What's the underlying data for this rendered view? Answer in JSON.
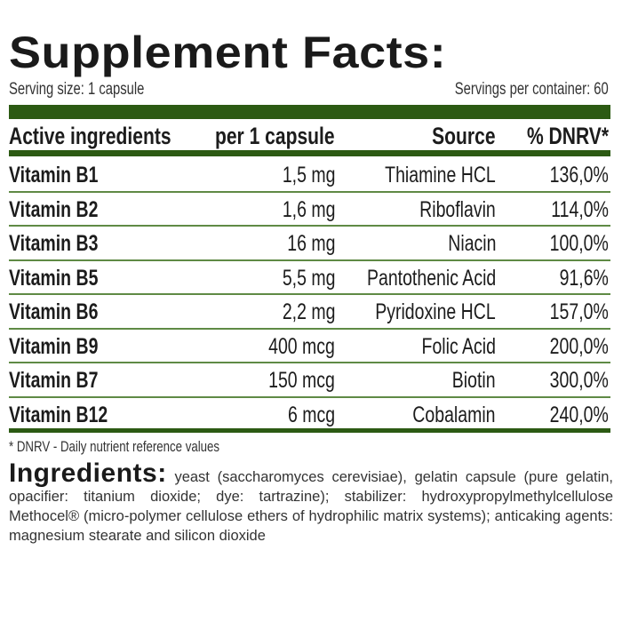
{
  "title": "Supplement Facts:",
  "serving_size": "Serving size: 1 capsule",
  "servings_per_container": "Servings per container: 60",
  "accent_color": "#2c5a13",
  "table": {
    "headers": [
      "Active ingredients",
      "per 1 capsule",
      "Source",
      "% DNRV*"
    ],
    "rows": [
      [
        "Vitamin B1",
        "1,5 mg",
        "Thiamine HCL",
        "136,0%"
      ],
      [
        "Vitamin B2",
        "1,6 mg",
        "Riboflavin",
        "114,0%"
      ],
      [
        "Vitamin B3",
        "16 mg",
        "Niacin",
        "100,0%"
      ],
      [
        "Vitamin B5",
        "5,5 mg",
        "Pantothenic Acid",
        "91,6%"
      ],
      [
        "Vitamin B6",
        "2,2 mg",
        "Pyridoxine HCL",
        "157,0%"
      ],
      [
        "Vitamin B9",
        "400 mcg",
        "Folic Acid",
        "200,0%"
      ],
      [
        "Vitamin B7",
        "150 mcg",
        "Biotin",
        "300,0%"
      ],
      [
        "Vitamin B12",
        "6 mcg",
        "Cobalamin",
        "240,0%"
      ]
    ]
  },
  "footnote": "* DNRV - Daily nutrient reference values",
  "ingredients": {
    "heading": "Ingredients:",
    "text": "yeast (saccharomyces cerevisiae), gelatin capsule (pure gelatin, opacifier: titanium dioxide; dye: tartrazine); stabilizer: hydroxypropylmethylcellulose Methocel® (micro-polymer cellulose ethers of hydrophilic matrix systems); anticaking agents: magnesium stearate and silicon dioxide"
  }
}
